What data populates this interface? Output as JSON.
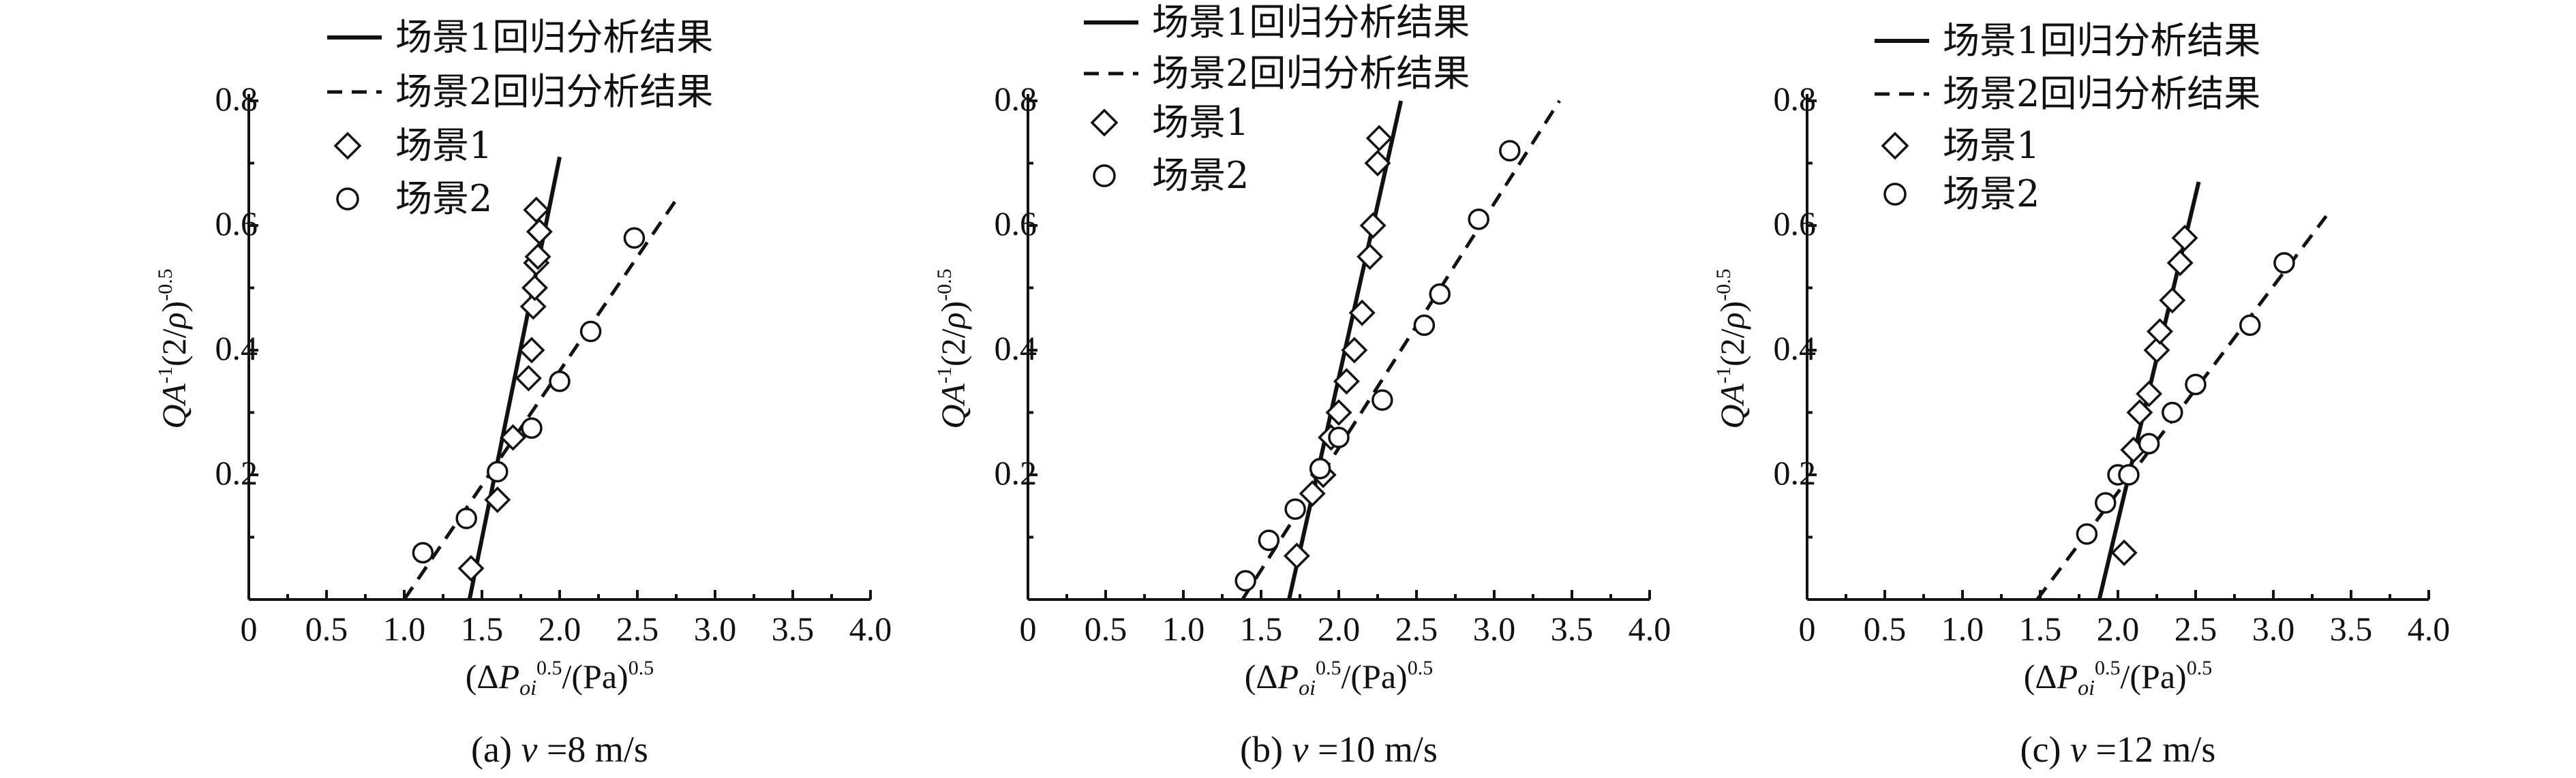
{
  "chart_data": [
    {
      "type": "scatter",
      "caption": "(a) v =8 m/s",
      "xlabel": "(ΔPoi)0.5/(Pa)0.5",
      "ylabel": "QA-1(2/ρ)-0.5",
      "xlim": [
        0,
        4.0
      ],
      "ylim": [
        0,
        0.8
      ],
      "xticks": [
        "0",
        "0.5",
        "1.0",
        "1.5",
        "2.0",
        "2.5",
        "3.0",
        "3.5",
        "4.0"
      ],
      "yticks": [
        "0.2",
        "0.4",
        "0.6",
        "0.8"
      ],
      "legend": {
        "placement": "top-left",
        "entries": [
          "场景1回归分析结果",
          "场景2回归分析结果",
          "场景1",
          "场景2"
        ]
      },
      "fits": [
        {
          "name": "场景1回归分析结果",
          "style": "solid",
          "x": [
            1.42,
            2.0
          ],
          "y": [
            0.0,
            0.71
          ]
        },
        {
          "name": "场景2回归分析结果",
          "style": "dashed",
          "x": [
            1.0,
            2.76
          ],
          "y": [
            0.0,
            0.645
          ]
        }
      ],
      "series": [
        {
          "name": "场景1",
          "marker": "diamond",
          "x": [
            1.43,
            1.6,
            1.7,
            1.8,
            1.82,
            1.83,
            1.84,
            1.85,
            1.86,
            1.87,
            1.85
          ],
          "y": [
            0.05,
            0.16,
            0.26,
            0.355,
            0.4,
            0.47,
            0.5,
            0.54,
            0.55,
            0.59,
            0.625
          ]
        },
        {
          "name": "场景2",
          "marker": "circle",
          "x": [
            1.12,
            1.4,
            1.6,
            1.82,
            2.0,
            2.2,
            2.48
          ],
          "y": [
            0.075,
            0.13,
            0.205,
            0.275,
            0.35,
            0.43,
            0.58
          ]
        }
      ]
    },
    {
      "type": "scatter",
      "caption": "(b) v =10 m/s",
      "xlabel": "(ΔPoi)0.5/(Pa)0.5",
      "ylabel": "QA-1(2/ρ)-0.5",
      "xlim": [
        0,
        4.0
      ],
      "ylim": [
        0,
        0.8
      ],
      "xticks": [
        "0",
        "0.5",
        "1.0",
        "1.5",
        "2.0",
        "2.5",
        "3.0",
        "3.5",
        "4.0"
      ],
      "yticks": [
        "0.2",
        "0.4",
        "0.6",
        "0.8"
      ],
      "legend": {
        "placement": "top-left",
        "entries": [
          "场景1回归分析结果",
          "场景2回归分析结果",
          "场景1",
          "场景2"
        ]
      },
      "fits": [
        {
          "name": "场景1回归分析结果",
          "style": "solid",
          "x": [
            1.68,
            2.4
          ],
          "y": [
            0.0,
            0.8
          ]
        },
        {
          "name": "场景2回归分析结果",
          "style": "dashed",
          "x": [
            1.38,
            3.42
          ],
          "y": [
            0.0,
            0.8
          ]
        }
      ],
      "series": [
        {
          "name": "场景1",
          "marker": "diamond",
          "x": [
            1.73,
            1.83,
            1.9,
            1.95,
            2.0,
            2.05,
            2.1,
            2.15,
            2.2,
            2.22,
            2.25,
            2.26
          ],
          "y": [
            0.07,
            0.17,
            0.2,
            0.26,
            0.3,
            0.35,
            0.4,
            0.46,
            0.55,
            0.6,
            0.7,
            0.74
          ]
        },
        {
          "name": "场景2",
          "marker": "circle",
          "x": [
            1.4,
            1.55,
            1.72,
            1.88,
            2.0,
            2.28,
            2.55,
            2.65,
            2.9,
            3.1
          ],
          "y": [
            0.03,
            0.095,
            0.145,
            0.21,
            0.26,
            0.32,
            0.44,
            0.49,
            0.61,
            0.72
          ]
        }
      ]
    },
    {
      "type": "scatter",
      "caption": "(c) v =12 m/s",
      "xlabel": "(ΔPoi)0.5/(Pa)0.5",
      "ylabel": "QA-1(2/ρ)-0.5",
      "xlim": [
        0,
        4.0
      ],
      "ylim": [
        0,
        0.8
      ],
      "xticks": [
        "0",
        "0.5",
        "1.0",
        "1.5",
        "2.0",
        "2.5",
        "3.0",
        "3.5",
        "4.0"
      ],
      "yticks": [
        "0.2",
        "0.4",
        "0.6",
        "0.8"
      ],
      "legend": {
        "placement": "top-left",
        "entries": [
          "场景1回归分析结果",
          "场景2回归分析结果",
          "场景1",
          "场景2"
        ]
      },
      "fits": [
        {
          "name": "场景1回归分析结果",
          "style": "solid",
          "x": [
            1.88,
            2.52
          ],
          "y": [
            0.0,
            0.67
          ]
        },
        {
          "name": "场景2回归分析结果",
          "style": "dashed",
          "x": [
            1.48,
            3.34
          ],
          "y": [
            0.0,
            0.615
          ]
        }
      ],
      "series": [
        {
          "name": "场景1",
          "marker": "diamond",
          "x": [
            2.04,
            2.1,
            2.14,
            2.2,
            2.25,
            2.27,
            2.35,
            2.4,
            2.43
          ],
          "y": [
            0.075,
            0.24,
            0.3,
            0.33,
            0.4,
            0.43,
            0.48,
            0.54,
            0.58
          ]
        },
        {
          "name": "场景2",
          "marker": "circle",
          "x": [
            1.8,
            1.92,
            2.0,
            2.07,
            2.2,
            2.35,
            2.5,
            2.85,
            3.07
          ],
          "y": [
            0.105,
            0.155,
            0.2,
            0.2,
            0.25,
            0.3,
            0.345,
            0.44,
            0.54
          ]
        }
      ]
    }
  ]
}
